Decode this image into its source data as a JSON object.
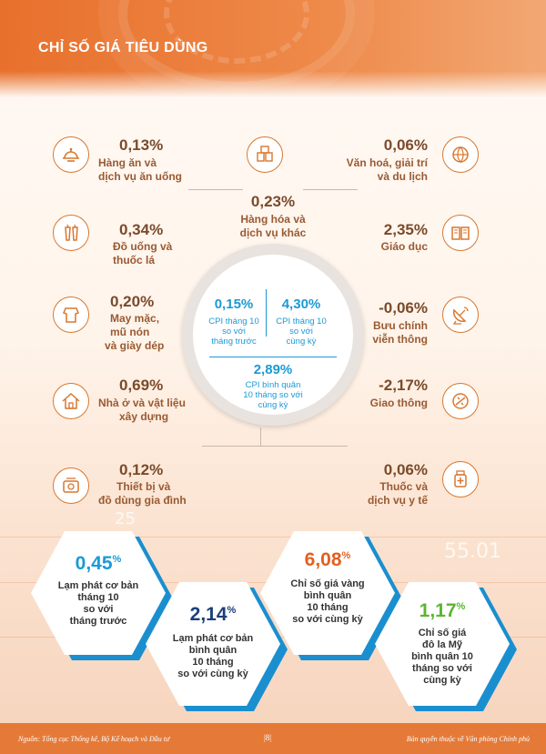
{
  "header": {
    "title": "CHỈ SỐ GIÁ TIÊU DÙNG"
  },
  "left_items": [
    {
      "percent": "0,13%",
      "label_1": "Hàng ăn và",
      "label_2": "dịch vụ ăn uống",
      "label_3": "",
      "icon": "food-tray-icon"
    },
    {
      "percent": "0,34%",
      "label_1": "Đồ uống và",
      "label_2": "thuốc lá",
      "label_3": "",
      "icon": "drinks-icon"
    },
    {
      "percent": "0,20%",
      "label_1": "May mặc,",
      "label_2": "mũ nón",
      "label_3": "và giày dép",
      "icon": "clothing-icon"
    },
    {
      "percent": "0,69%",
      "label_1": "Nhà ở và vật liệu",
      "label_2": "xây dựng",
      "label_3": "",
      "icon": "house-icon"
    },
    {
      "percent": "0,12%",
      "label_1": "Thiết bị và",
      "label_2": "đồ dùng gia đình",
      "label_3": "",
      "icon": "appliance-icon"
    }
  ],
  "right_items": [
    {
      "percent": "0,06%",
      "label_1": "Văn hoá, giải trí",
      "label_2": "và du lịch",
      "icon": "globe-icon"
    },
    {
      "percent": "2,35%",
      "label_1": "Giáo dục",
      "label_2": "",
      "icon": "book-icon"
    },
    {
      "percent": "-0,06%",
      "label_1": "Bưu chính",
      "label_2": "viễn thông",
      "icon": "satellite-icon"
    },
    {
      "percent": "-2,17%",
      "label_1": "Giao thông",
      "label_2": "",
      "icon": "traffic-icon"
    },
    {
      "percent": "0,06%",
      "label_1": "Thuốc và",
      "label_2": "dịch vụ y tế",
      "icon": "medicine-icon"
    }
  ],
  "center_item": {
    "percent": "0,23%",
    "label_1": "Hàng hóa và",
    "label_2": "dịch vụ khác",
    "icon": "goods-icon"
  },
  "cpi_circle": {
    "month_pct": "0,15%",
    "month_l1": "CPI tháng 10",
    "month_l2": "so với",
    "month_l3": "tháng trước",
    "year_pct": "4,30%",
    "year_l1": "CPI tháng 10",
    "year_l2": "so với",
    "year_l3": "cùng kỳ",
    "avg_pct": "2,89%",
    "avg_l1": "CPI bình quân",
    "avg_l2": "10 tháng so với",
    "avg_l3": "cùng kỳ"
  },
  "hexagons": [
    {
      "value": "0,45",
      "unit": "%",
      "color": "#1a9ad6",
      "lines": [
        "Lạm phát cơ bản",
        "tháng 10",
        "so với",
        "tháng trước"
      ]
    },
    {
      "value": "2,14",
      "unit": "%",
      "color": "#1b3f7a",
      "lines": [
        "Lạm phát cơ bản",
        "bình quân",
        "10 tháng",
        "so với cùng kỳ"
      ]
    },
    {
      "value": "6,08",
      "unit": "%",
      "color": "#e2601f",
      "lines": [
        "Chỉ số giá vàng",
        "bình quân",
        "10 tháng",
        "so với cùng kỳ"
      ]
    },
    {
      "value": "1,17",
      "unit": "%",
      "color": "#5cb531",
      "lines": [
        "Chỉ số giá",
        "đô la Mỹ",
        "bình quân 10",
        "tháng so với",
        "cùng kỳ"
      ]
    }
  ],
  "background_numbers": [
    "55.01",
    "25"
  ],
  "footer": {
    "source": "Nguồn: Tổng cục Thống kê, Bộ Kế hoạch và Đầu tư",
    "page": "|8|",
    "copyright": "Bản quyền thuộc về Văn phòng Chính phủ"
  },
  "colors": {
    "accent": "#e57a38",
    "blue": "#1a9ad6",
    "brown": "#7a4a2a"
  }
}
